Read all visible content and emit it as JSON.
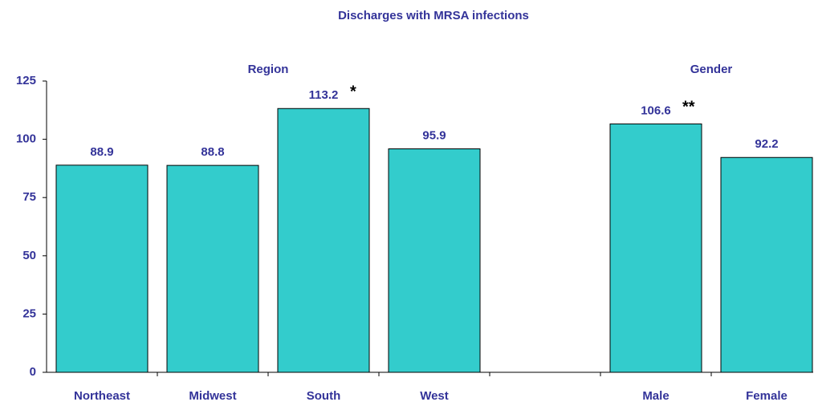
{
  "chart_data": {
    "type": "bar",
    "title": "Discharges with MRSA infections",
    "categories": [
      "Northeast",
      "Midwest",
      "South",
      "West",
      null,
      "Male",
      "Female"
    ],
    "values": [
      88.9,
      88.8,
      113.2,
      95.9,
      null,
      106.6,
      92.2
    ],
    "color": "#33cccc",
    "ylim": [
      0,
      125
    ],
    "yticks": [
      0,
      25,
      50,
      75,
      100,
      125
    ],
    "group_labels": [
      "Region",
      "Gender"
    ],
    "annotations": [
      {
        "category": "South",
        "text": "*"
      },
      {
        "category": "Male",
        "text": "**"
      }
    ]
  }
}
